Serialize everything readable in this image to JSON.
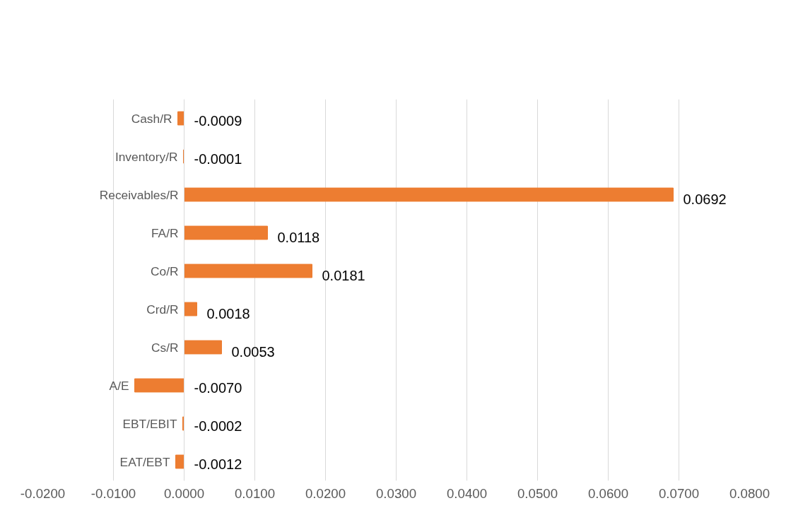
{
  "chart_data": {
    "type": "bar",
    "orientation": "horizontal",
    "categories": [
      "Cash/R",
      "Inventory/R",
      "Receivables/R",
      "FA/R",
      "Co/R",
      "Crd/R",
      "Cs/R",
      "A/E",
      "EBT/EBIT",
      "EAT/EBT"
    ],
    "values": [
      -0.0009,
      -0.0001,
      0.0692,
      0.0118,
      0.0181,
      0.0018,
      0.0053,
      -0.007,
      -0.0002,
      -0.0012
    ],
    "value_labels": [
      "-0.0009",
      "-0.0001",
      "0.0692",
      "0.0118",
      "0.0181",
      "0.0018",
      "0.0053",
      "-0.0070",
      "-0.0002",
      "-0.0012"
    ],
    "color": "#ed7d31",
    "xlim": [
      -0.02,
      0.08
    ],
    "xticks": [
      {
        "value": -0.02,
        "label": "-0.0200"
      },
      {
        "value": -0.01,
        "label": "-0.0100"
      },
      {
        "value": 0,
        "label": "0.0000"
      },
      {
        "value": 0.01,
        "label": "0.0100"
      },
      {
        "value": 0.02,
        "label": "0.0200"
      },
      {
        "value": 0.03,
        "label": "0.0300"
      },
      {
        "value": 0.04,
        "label": "0.0400"
      },
      {
        "value": 0.05,
        "label": "0.0500"
      },
      {
        "value": 0.06,
        "label": "0.0600"
      },
      {
        "value": 0.07,
        "label": "0.0700"
      },
      {
        "value": 0.08,
        "label": "0.0800"
      }
    ],
    "grid": "x"
  }
}
